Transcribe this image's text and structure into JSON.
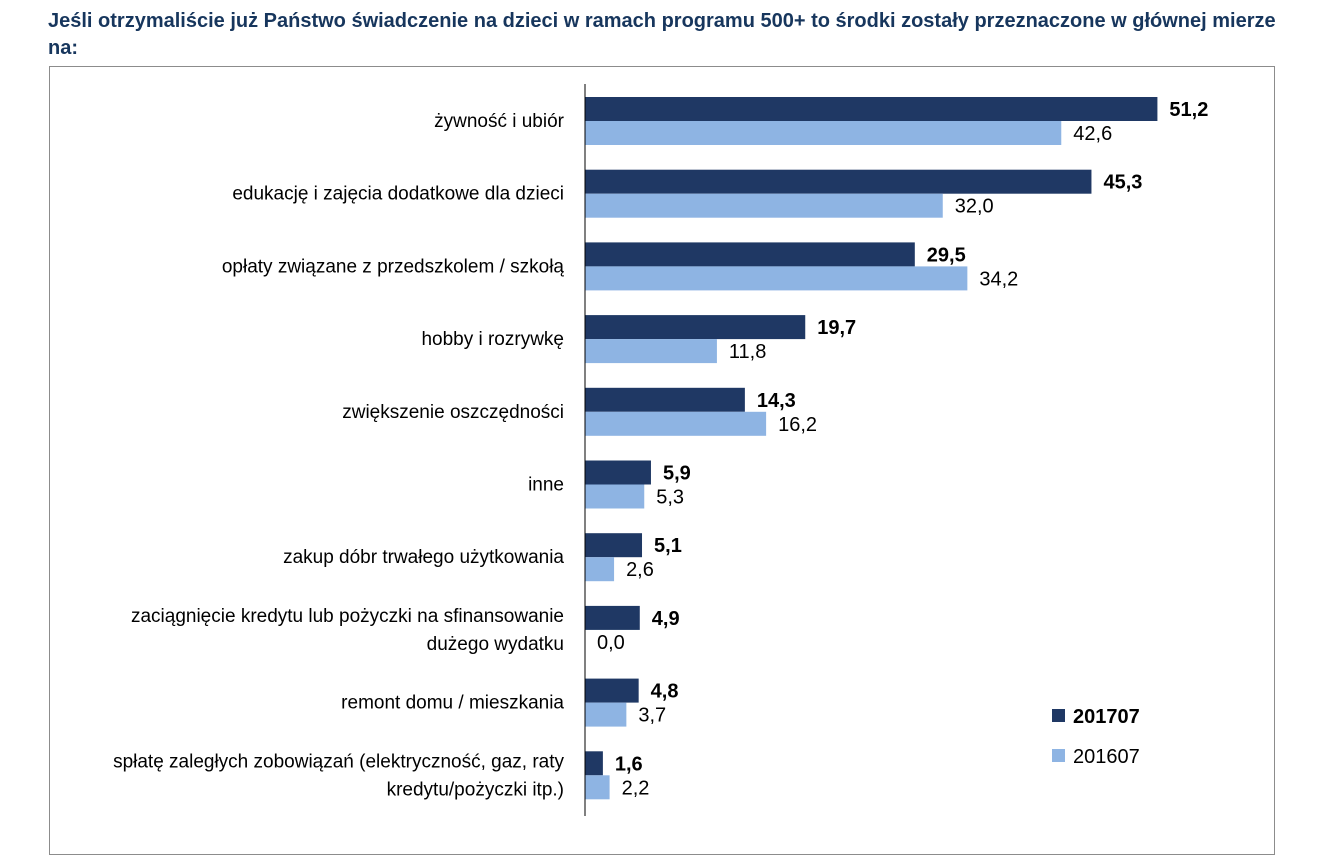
{
  "chart_data": {
    "type": "bar",
    "orientation": "horizontal",
    "title": "Jeśli otrzymaliście już Państwo świadczenie na dzieci w ramach programu 500+ to środki zostały przeznaczone w głównej mierze na:",
    "categories": [
      [
        "żywność i ubiór"
      ],
      [
        "edukację i zajęcia dodatkowe dla dzieci"
      ],
      [
        "opłaty związane z przedszkolem / szkołą"
      ],
      [
        "hobby i rozrywkę"
      ],
      [
        "zwiększenie oszczędności"
      ],
      [
        "inne"
      ],
      [
        "zakup dóbr trwałego użytkowania"
      ],
      [
        "zaciągnięcie kredytu lub pożyczki na sfinansowanie",
        "dużego wydatku"
      ],
      [
        "remont domu / mieszkania"
      ],
      [
        "spłatę zaległych zobowiązań (elektryczność, gaz, raty",
        "kredytu/pożyczki itp.)"
      ]
    ],
    "series": [
      {
        "name": "201707",
        "color": "#1f3864",
        "labels": [
          "51,2",
          "45,3",
          "29,5",
          "19,7",
          "14,3",
          "5,9",
          "5,1",
          "4,9",
          "4,8",
          "1,6"
        ],
        "values": [
          51.2,
          45.3,
          29.5,
          19.7,
          14.3,
          5.9,
          5.1,
          4.9,
          4.8,
          1.6
        ]
      },
      {
        "name": "201607",
        "color": "#8eb4e3",
        "labels": [
          "42,6",
          "32,0",
          "34,2",
          "11,8",
          "16,2",
          "5,3",
          "2,6",
          "0,0",
          "3,7",
          "2,2"
        ],
        "values": [
          42.6,
          32.0,
          34.2,
          11.8,
          16.2,
          5.3,
          2.6,
          0.0,
          3.7,
          2.2
        ]
      }
    ],
    "xlim": [
      0,
      51.2
    ],
    "grid": false,
    "legend": "bottom-right"
  }
}
